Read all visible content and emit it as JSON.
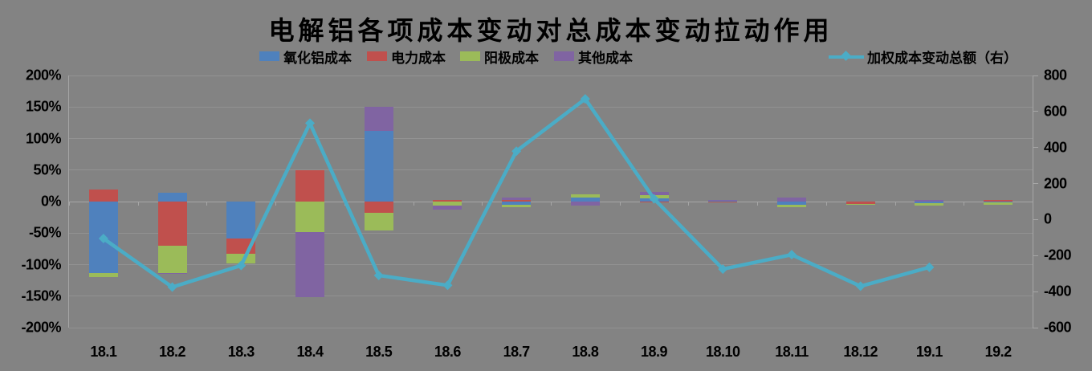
{
  "title": "电解铝各项成本变动对总成本变动拉动作用",
  "chart_data": {
    "type": "bar",
    "subtype": "stacked-bar with overlay line (combo chart)",
    "title": "电解铝各项成本变动对总成本变动拉动作用",
    "legend_position": "top",
    "grid": "horizontal gridlines on",
    "categories": [
      "18.1",
      "18.2",
      "18.3",
      "18.4",
      "18.5",
      "18.6",
      "18.7",
      "18.8",
      "18.9",
      "18.10",
      "18.11",
      "18.12",
      "19.1",
      "19.2"
    ],
    "series": [
      {
        "name": "氧化铝成本",
        "color": "#4F81BD",
        "axis": "left",
        "unit": "%",
        "values": [
          -114,
          14,
          -58,
          0,
          112,
          0,
          -5,
          6,
          5,
          1,
          -5,
          0,
          -3,
          -1
        ]
      },
      {
        "name": "电力成本",
        "color": "#C0504D",
        "axis": "left",
        "unit": "%",
        "values": [
          19,
          -70,
          -25,
          50,
          -18,
          3,
          2,
          0,
          -1,
          -1,
          0,
          -4,
          0,
          2
        ]
      },
      {
        "name": "阳极成本",
        "color": "#9BBB59",
        "axis": "left",
        "unit": "%",
        "values": [
          -6,
          -43,
          -15,
          -48,
          -28,
          -7,
          -4,
          5,
          5,
          1,
          -4,
          -1,
          -4,
          -4
        ]
      },
      {
        "name": "其他成本",
        "color": "#8064A2",
        "axis": "left",
        "unit": "%",
        "values": [
          0,
          -2,
          0,
          -103,
          38,
          -6,
          5,
          -6,
          5,
          1,
          7,
          0,
          2,
          0
        ]
      }
    ],
    "line_series": {
      "name": "加权成本变动总额（右）",
      "color": "#4BACC6",
      "axis": "right",
      "marker": "diamond",
      "values": [
        -105,
        -375,
        -255,
        535,
        -310,
        -365,
        380,
        670,
        115,
        -275,
        -195,
        -370,
        -265,
        null
      ]
    },
    "left_axis": {
      "min": -200,
      "max": 200,
      "step": 50,
      "format": "percent",
      "ticks": [
        "200%",
        "150%",
        "100%",
        "50%",
        "0%",
        "-50%",
        "-100%",
        "-150%",
        "-200%"
      ],
      "tick_values": [
        200,
        150,
        100,
        50,
        0,
        -50,
        -100,
        -150,
        -200
      ]
    },
    "right_axis": {
      "min": -600,
      "max": 800,
      "step": 200,
      "ticks": [
        "800",
        "600",
        "400",
        "200",
        "0",
        "-200",
        "-400",
        "-600"
      ],
      "tick_values": [
        800,
        600,
        400,
        200,
        0,
        -200,
        -400,
        -600
      ]
    }
  },
  "colors": {
    "background": "#838383",
    "gridline": "#929292",
    "axis": "#a6a6a6",
    "text": "#000000"
  }
}
